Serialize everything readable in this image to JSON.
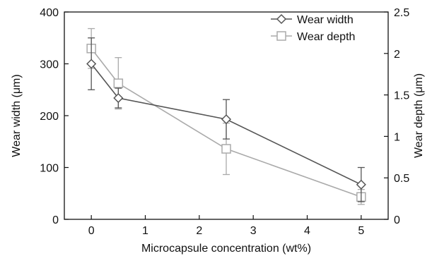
{
  "chart_data": {
    "type": "line",
    "xlabel": "Microcapsule concentration (wt%)",
    "ylabel": "Wear width (μm)",
    "y2label": "Wear depth (μm)",
    "xlim": [
      -0.5,
      5.5
    ],
    "xticks": [
      0,
      1,
      2,
      3,
      4,
      5
    ],
    "ylim": [
      0,
      400
    ],
    "yticks": [
      0,
      100,
      200,
      300,
      400
    ],
    "y2lim": [
      0,
      2.5
    ],
    "y2ticks": [
      "0",
      "0.5",
      "1",
      "1.5",
      "2",
      "2.5"
    ],
    "y2tick_values": [
      0,
      0.5,
      1,
      1.5,
      2,
      2.5
    ],
    "legend_position": "top-right",
    "grid": false,
    "series": [
      {
        "name": "Wear width",
        "axis": "left",
        "marker": "diamond",
        "color": "#555555",
        "x": [
          0,
          0.5,
          2.5,
          5
        ],
        "y": [
          300,
          234,
          193,
          67
        ],
        "err": [
          50,
          19,
          38,
          33
        ]
      },
      {
        "name": "Wear depth",
        "axis": "right",
        "marker": "square",
        "color": "#aaaaaa",
        "x": [
          0,
          0.5,
          2.5,
          5
        ],
        "y": [
          2.06,
          1.64,
          0.85,
          0.27
        ],
        "err": [
          0.24,
          0.31,
          0.31,
          0.09
        ]
      }
    ]
  }
}
